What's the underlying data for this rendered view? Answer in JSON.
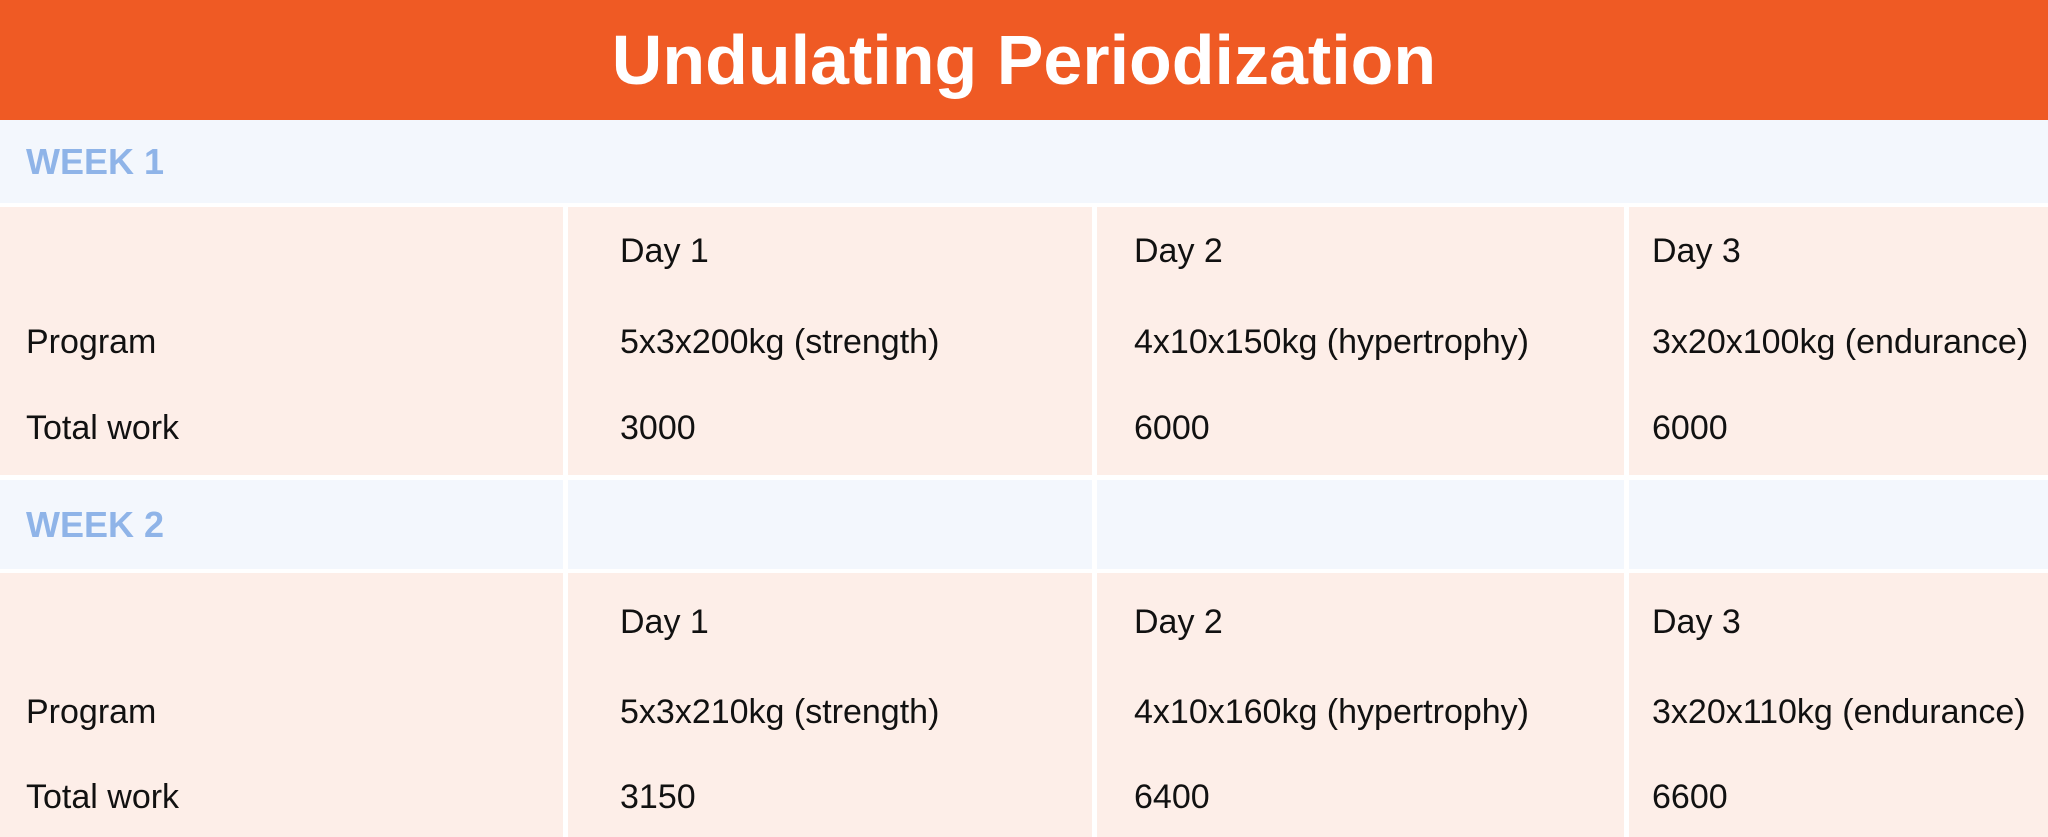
{
  "title": "Undulating Periodization",
  "weeks": [
    {
      "label": "WEEK 1",
      "days": [
        "Day 1",
        "Day 2",
        "Day 3"
      ],
      "rows": [
        {
          "label": "Program",
          "cells": [
            "5x3x200kg (strength)",
            "4x10x150kg (hypertrophy)",
            "3x20x100kg (endurance)"
          ]
        },
        {
          "label": "Total work",
          "cells": [
            3000,
            6000,
            6000
          ]
        }
      ]
    },
    {
      "label": "WEEK 2",
      "days": [
        "Day 1",
        "Day 2",
        "Day 3"
      ],
      "rows": [
        {
          "label": "Program",
          "cells": [
            "5x3x210kg (strength)",
            "4x10x160kg (hypertrophy)",
            "3x20x110kg (endurance)"
          ]
        },
        {
          "label": "Total work",
          "cells": [
            3150,
            6400,
            6600
          ]
        }
      ]
    }
  ]
}
